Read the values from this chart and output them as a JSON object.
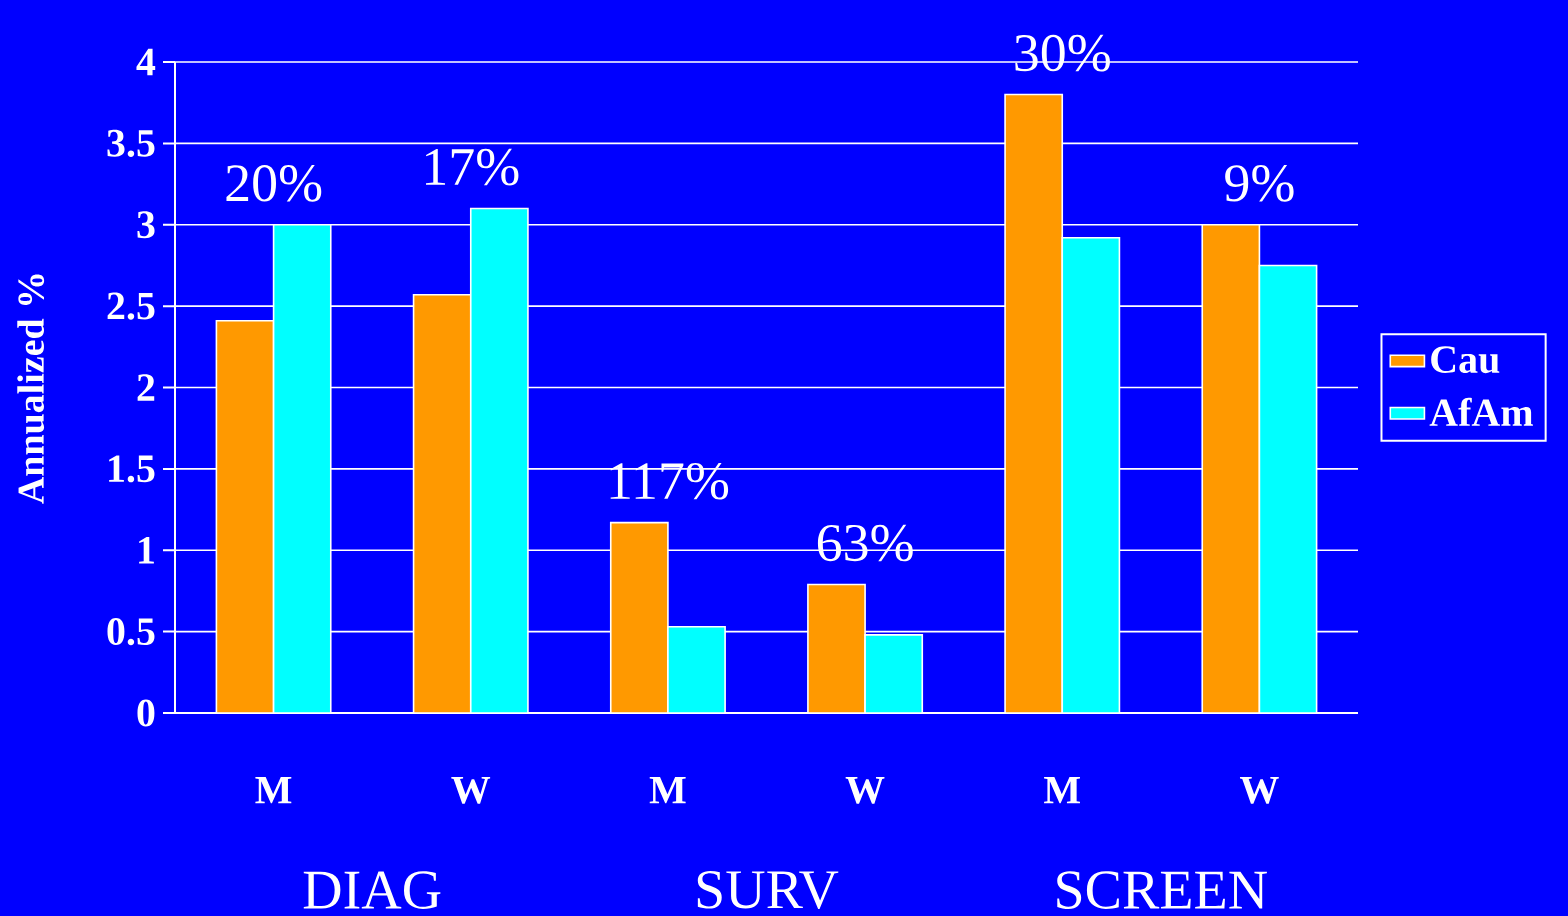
{
  "chart_data": {
    "type": "bar",
    "ylabel": "Annualized %",
    "categories": [
      "M",
      "W",
      "M",
      "W",
      "M",
      "W"
    ],
    "series": [
      {
        "name": "Cau",
        "color": "#ff9900",
        "values": [
          2.41,
          2.57,
          1.17,
          0.79,
          3.8,
          3.0
        ]
      },
      {
        "name": "AfAm",
        "color": "#00ffff",
        "values": [
          3.0,
          3.1,
          0.53,
          0.48,
          2.92,
          2.75
        ]
      }
    ],
    "ylim": [
      0,
      4
    ],
    "yticks": [
      0,
      0.5,
      1,
      1.5,
      2,
      2.5,
      3,
      3.5,
      4
    ],
    "grid": "y",
    "legend": "right",
    "annotations": [
      "20%",
      "17%",
      "117%",
      "63%",
      "30%",
      "9%",
      "DIAG",
      "SURV",
      "SCREEN"
    ]
  }
}
